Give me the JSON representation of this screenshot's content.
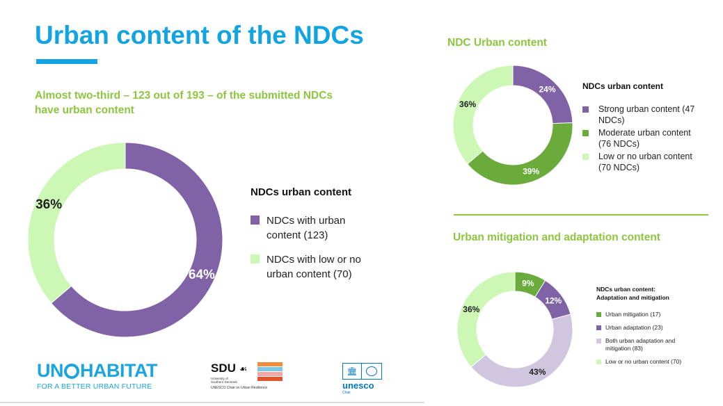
{
  "header": {
    "title": "Urban content of the NDCs",
    "subtitle": "Almost two-third – 123 out of 193 – of the submitted NDCs have urban content"
  },
  "sections": {
    "top_right": "NDC Urban content",
    "bottom_right": "Urban mitigation and adaptation content"
  },
  "colors": {
    "accent_blue": "#12a3e3",
    "accent_green": "#8cc63f",
    "purple": "#7f63a6",
    "dark_green": "#6aab3c",
    "light_green": "#ccf7b5",
    "lavender": "#cfc7df"
  },
  "logos": {
    "unhabitat_left": "UN",
    "unhabitat_right": "HABITAT",
    "unhabitat_tagline": "FOR A BETTER URBAN FUTURE",
    "sdu": "SDU",
    "sdu_university": "University of Southern Denmark",
    "sdu_chair": "UNESCO Chair on Urban Resilience",
    "unesco": "unesco",
    "unesco_chair": "Chair"
  },
  "chart_data": [
    {
      "type": "pie",
      "title": "NDCs urban content",
      "categories": [
        "NDCs with urban content (123)",
        "NDCs with low or no urban content (70)"
      ],
      "values": [
        123,
        70
      ],
      "labels": [
        "64%",
        "36%"
      ],
      "colors": [
        "#7f63a6",
        "#ccf7b5"
      ],
      "legend": "right"
    },
    {
      "type": "pie",
      "title": "NDCs urban content",
      "categories": [
        "Strong urban content (47 NDCs)",
        "Moderate urban content (76 NDCs)",
        "Low or no urban content (70 NDCs)"
      ],
      "values": [
        47,
        76,
        70
      ],
      "labels": [
        "24%",
        "39%",
        "36%"
      ],
      "colors": [
        "#7f63a6",
        "#6aab3c",
        "#ccf7b5"
      ],
      "legend": "right"
    },
    {
      "type": "pie",
      "title": "NDCs urban content: Adaptation and mitigation",
      "categories": [
        "Urban mitigation (17)",
        "Urban adaptation (23)",
        "Both urban adaptation and mitigation (83)",
        "Low or no urban content (70)"
      ],
      "values": [
        17,
        23,
        83,
        70
      ],
      "labels": [
        "9%",
        "12%",
        "43%",
        "36%"
      ],
      "colors": [
        "#6aab3c",
        "#7f63a6",
        "#cfc7df",
        "#ccf7b5"
      ],
      "legend": "right"
    }
  ]
}
